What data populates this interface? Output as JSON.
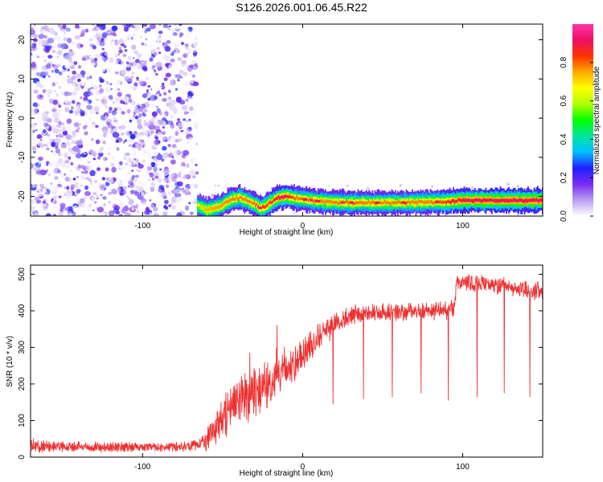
{
  "figure": {
    "title": "S126.2026.001.06.45.R22"
  },
  "colors": {
    "snr_line": "#f03030",
    "scatter": "#7a2cf0",
    "frame": "#000000"
  },
  "chart_data": [
    {
      "type": "heatmap",
      "title": "",
      "xlabel": "Height of straight line (km)",
      "ylabel": "Frequency (Hz)",
      "xlim": [
        -170,
        150
      ],
      "ylim": [
        -25,
        24
      ],
      "xticks": [
        -100,
        0,
        100
      ],
      "yticks": [
        -20,
        -10,
        0,
        10,
        20
      ],
      "noise_region": {
        "x": [
          -170,
          -66
        ],
        "y": [
          -25,
          24
        ],
        "amplitude": [
          0.0,
          0.3
        ]
      },
      "signal_trace": {
        "x": [
          -66,
          -60,
          -52,
          -46,
          -40,
          -34,
          -30,
          -26,
          -22,
          -16,
          -10,
          -4,
          0,
          10,
          20,
          30,
          40,
          60,
          80,
          90,
          98,
          110,
          130,
          150
        ],
        "frequency": [
          -22.3,
          -23.5,
          -22.5,
          -21.0,
          -20.2,
          -21.3,
          -22.0,
          -23.0,
          -22.0,
          -20.3,
          -20.0,
          -20.5,
          -20.7,
          -21.2,
          -21.5,
          -21.6,
          -21.6,
          -21.6,
          -21.4,
          -21.4,
          -21.0,
          -21.0,
          -21.0,
          -21.0
        ],
        "amplitude": [
          0.3,
          0.5,
          0.55,
          0.6,
          0.6,
          0.6,
          0.65,
          0.75,
          0.7,
          0.8,
          0.85,
          0.6,
          0.65,
          0.6,
          0.6,
          0.65,
          0.6,
          0.6,
          0.6,
          0.75,
          0.9,
          0.95,
          0.95,
          0.95
        ]
      },
      "colorbar": {
        "label": "Normalized spectral amplitude",
        "range": [
          0.0,
          1.0
        ],
        "ticks": [
          "0.0",
          "0.2",
          "0.4",
          "0.6",
          "0.8"
        ],
        "tick_values": [
          0.0,
          0.2,
          0.4,
          0.6,
          0.8
        ],
        "stops": [
          "#ffffff",
          "#b89ef2",
          "#7a2cf0",
          "#2020ff",
          "#00bfff",
          "#00e6a0",
          "#00ff00",
          "#b0ff00",
          "#ffff00",
          "#ffaa00",
          "#ff3300",
          "#ee1166",
          "#ff33aa"
        ]
      }
    },
    {
      "type": "line",
      "title": "",
      "xlabel": "Height of straight line (km)",
      "ylabel": "SNR (10 * v/v)",
      "xlim": [
        -170,
        150
      ],
      "ylim": [
        0,
        525
      ],
      "xticks": [
        -100,
        0,
        100
      ],
      "yticks": [
        0,
        100,
        200,
        300,
        400,
        500
      ],
      "series": [
        {
          "x": [
            -170,
            -150,
            -120,
            -100,
            -80,
            -66,
            -60,
            -50,
            -40,
            -30,
            -20,
            -10,
            0,
            10,
            20,
            30,
            40,
            60,
            80,
            95,
            96,
            110,
            130,
            150
          ],
          "y": [
            28,
            25,
            24,
            24,
            25,
            28,
            40,
            95,
            140,
            165,
            195,
            230,
            270,
            320,
            355,
            380,
            390,
            390,
            395,
            400,
            470,
            470,
            460,
            445
          ],
          "noise": [
            22,
            18,
            16,
            16,
            16,
            18,
            40,
            70,
            90,
            90,
            80,
            65,
            55,
            45,
            35,
            30,
            30,
            28,
            28,
            28,
            28,
            28,
            28,
            28
          ]
        }
      ],
      "dropouts": [
        {
          "x": 19,
          "y": 145
        },
        {
          "x": 38,
          "y": 160
        },
        {
          "x": 56,
          "y": 165
        },
        {
          "x": 74,
          "y": 175
        },
        {
          "x": 91,
          "y": 155
        },
        {
          "x": 109,
          "y": 165
        },
        {
          "x": 126,
          "y": 175
        },
        {
          "x": 142,
          "y": 165
        }
      ],
      "spikes": [
        {
          "x": -16,
          "y": 360
        },
        {
          "x": -33,
          "y": 285
        }
      ]
    }
  ]
}
